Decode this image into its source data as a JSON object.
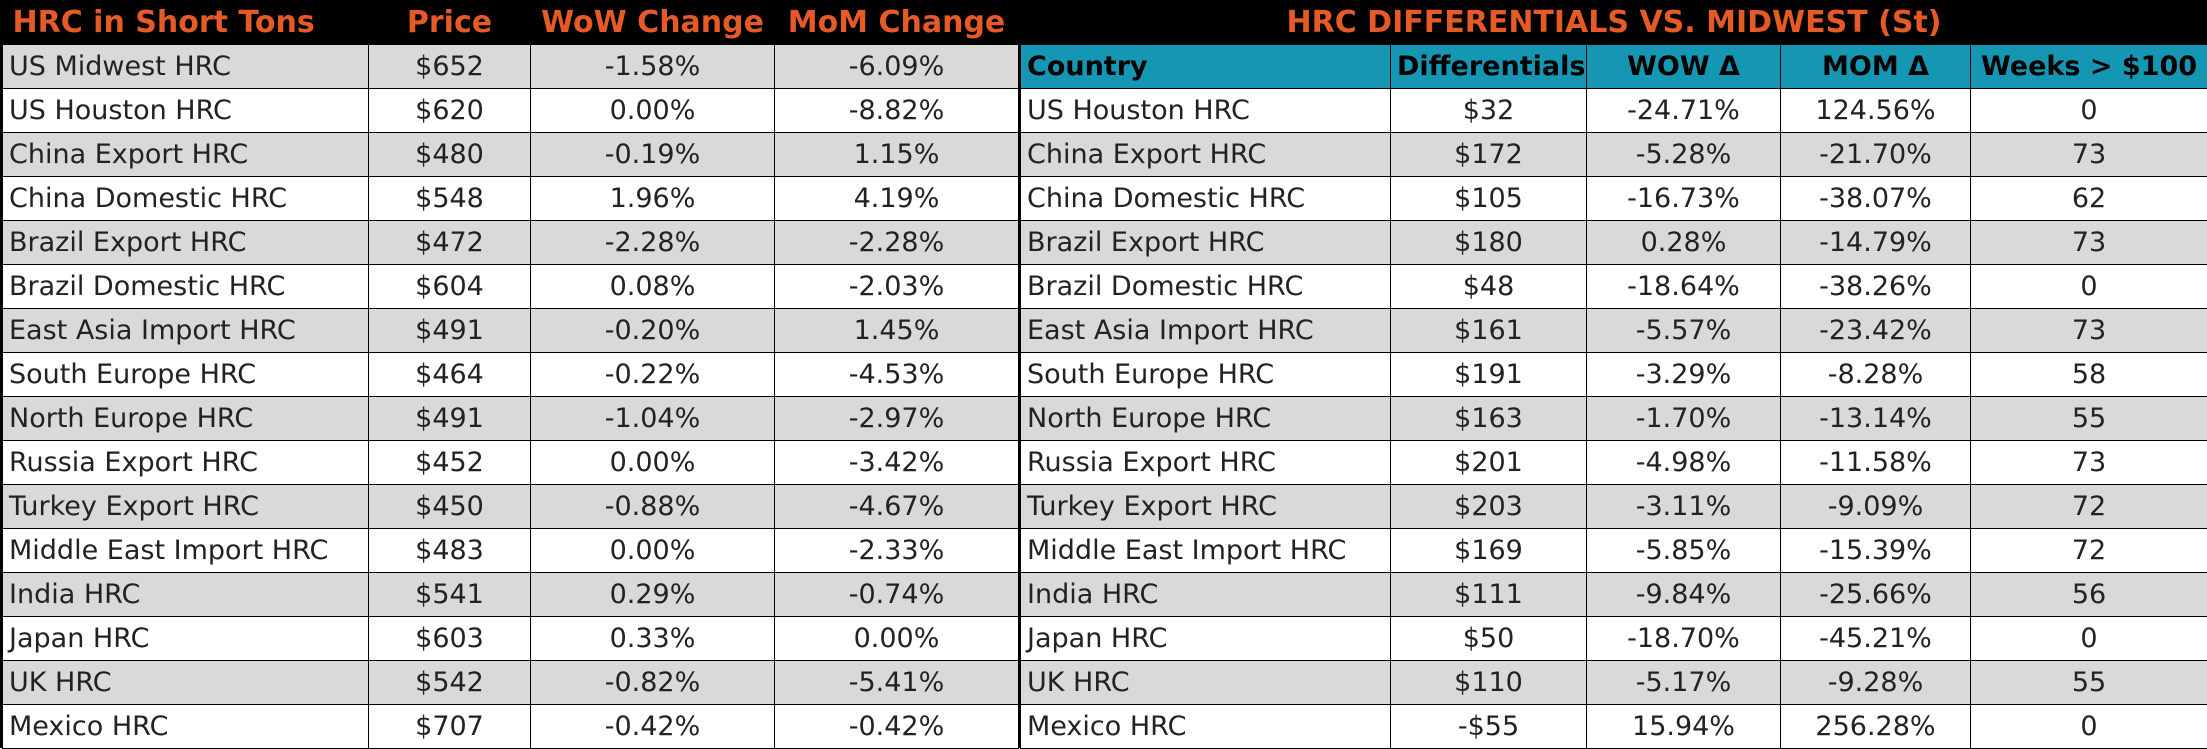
{
  "left": {
    "headers": [
      "HRC in Short Tons",
      "Price",
      "WoW Change",
      "MoM Change"
    ],
    "rows": [
      [
        "US Midwest HRC",
        "$652",
        "-1.58%",
        "-6.09%"
      ],
      [
        "US Houston HRC",
        "$620",
        "0.00%",
        "-8.82%"
      ],
      [
        "China Export HRC",
        "$480",
        "-0.19%",
        "1.15%"
      ],
      [
        "China Domestic HRC",
        "$548",
        "1.96%",
        "4.19%"
      ],
      [
        "Brazil Export HRC",
        "$472",
        "-2.28%",
        "-2.28%"
      ],
      [
        "Brazil Domestic HRC",
        "$604",
        "0.08%",
        "-2.03%"
      ],
      [
        "East Asia Import HRC",
        "$491",
        "-0.20%",
        "1.45%"
      ],
      [
        "South Europe HRC",
        "$464",
        "-0.22%",
        "-4.53%"
      ],
      [
        "North Europe HRC",
        "$491",
        "-1.04%",
        "-2.97%"
      ],
      [
        "Russia Export HRC",
        "$452",
        "0.00%",
        "-3.42%"
      ],
      [
        "Turkey Export HRC",
        "$450",
        "-0.88%",
        "-4.67%"
      ],
      [
        "Middle East Import HRC",
        "$483",
        "0.00%",
        "-2.33%"
      ],
      [
        "India HRC",
        "$541",
        "0.29%",
        "-0.74%"
      ],
      [
        "Japan HRC",
        "$603",
        "0.33%",
        "0.00%"
      ],
      [
        "UK HRC",
        "$542",
        "-0.82%",
        "-5.41%"
      ],
      [
        "Mexico HRC",
        "$707",
        "-0.42%",
        "-0.42%"
      ]
    ]
  },
  "right": {
    "title": "HRC DIFFERENTIALS VS. MIDWEST (St)",
    "headers": [
      "Country",
      "Differentials",
      "WOW Δ",
      "MOM Δ",
      "Weeks > $100"
    ],
    "rows": [
      [
        "US Houston HRC",
        "$32",
        "-24.71%",
        "124.56%",
        "0"
      ],
      [
        "China Export HRC",
        "$172",
        "-5.28%",
        "-21.70%",
        "73"
      ],
      [
        "China Domestic HRC",
        "$105",
        "-16.73%",
        "-38.07%",
        "62"
      ],
      [
        "Brazil Export HRC",
        "$180",
        "0.28%",
        "-14.79%",
        "73"
      ],
      [
        "Brazil Domestic HRC",
        "$48",
        "-18.64%",
        "-38.26%",
        "0"
      ],
      [
        "East Asia Import HRC",
        "$161",
        "-5.57%",
        "-23.42%",
        "73"
      ],
      [
        "South Europe HRC",
        "$191",
        "-3.29%",
        "-8.28%",
        "58"
      ],
      [
        "North Europe HRC",
        "$163",
        "-1.70%",
        "-13.14%",
        "55"
      ],
      [
        "Russia Export HRC",
        "$201",
        "-4.98%",
        "-11.58%",
        "73"
      ],
      [
        "Turkey Export HRC",
        "$203",
        "-3.11%",
        "-9.09%",
        "72"
      ],
      [
        "Middle East Import HRC",
        "$169",
        "-5.85%",
        "-15.39%",
        "72"
      ],
      [
        "India HRC",
        "$111",
        "-9.84%",
        "-25.66%",
        "56"
      ],
      [
        "Japan HRC",
        "$50",
        "-18.70%",
        "-45.21%",
        "0"
      ],
      [
        "UK HRC",
        "$110",
        "-5.17%",
        "-9.28%",
        "55"
      ],
      [
        "Mexico HRC",
        "-$55",
        "15.94%",
        "256.28%",
        "0"
      ]
    ]
  },
  "colors": {
    "title_text": "#e55a26",
    "header_bg": "#000000",
    "subheader_bg": "#1597b3",
    "stripe": "#d9d9d9"
  }
}
